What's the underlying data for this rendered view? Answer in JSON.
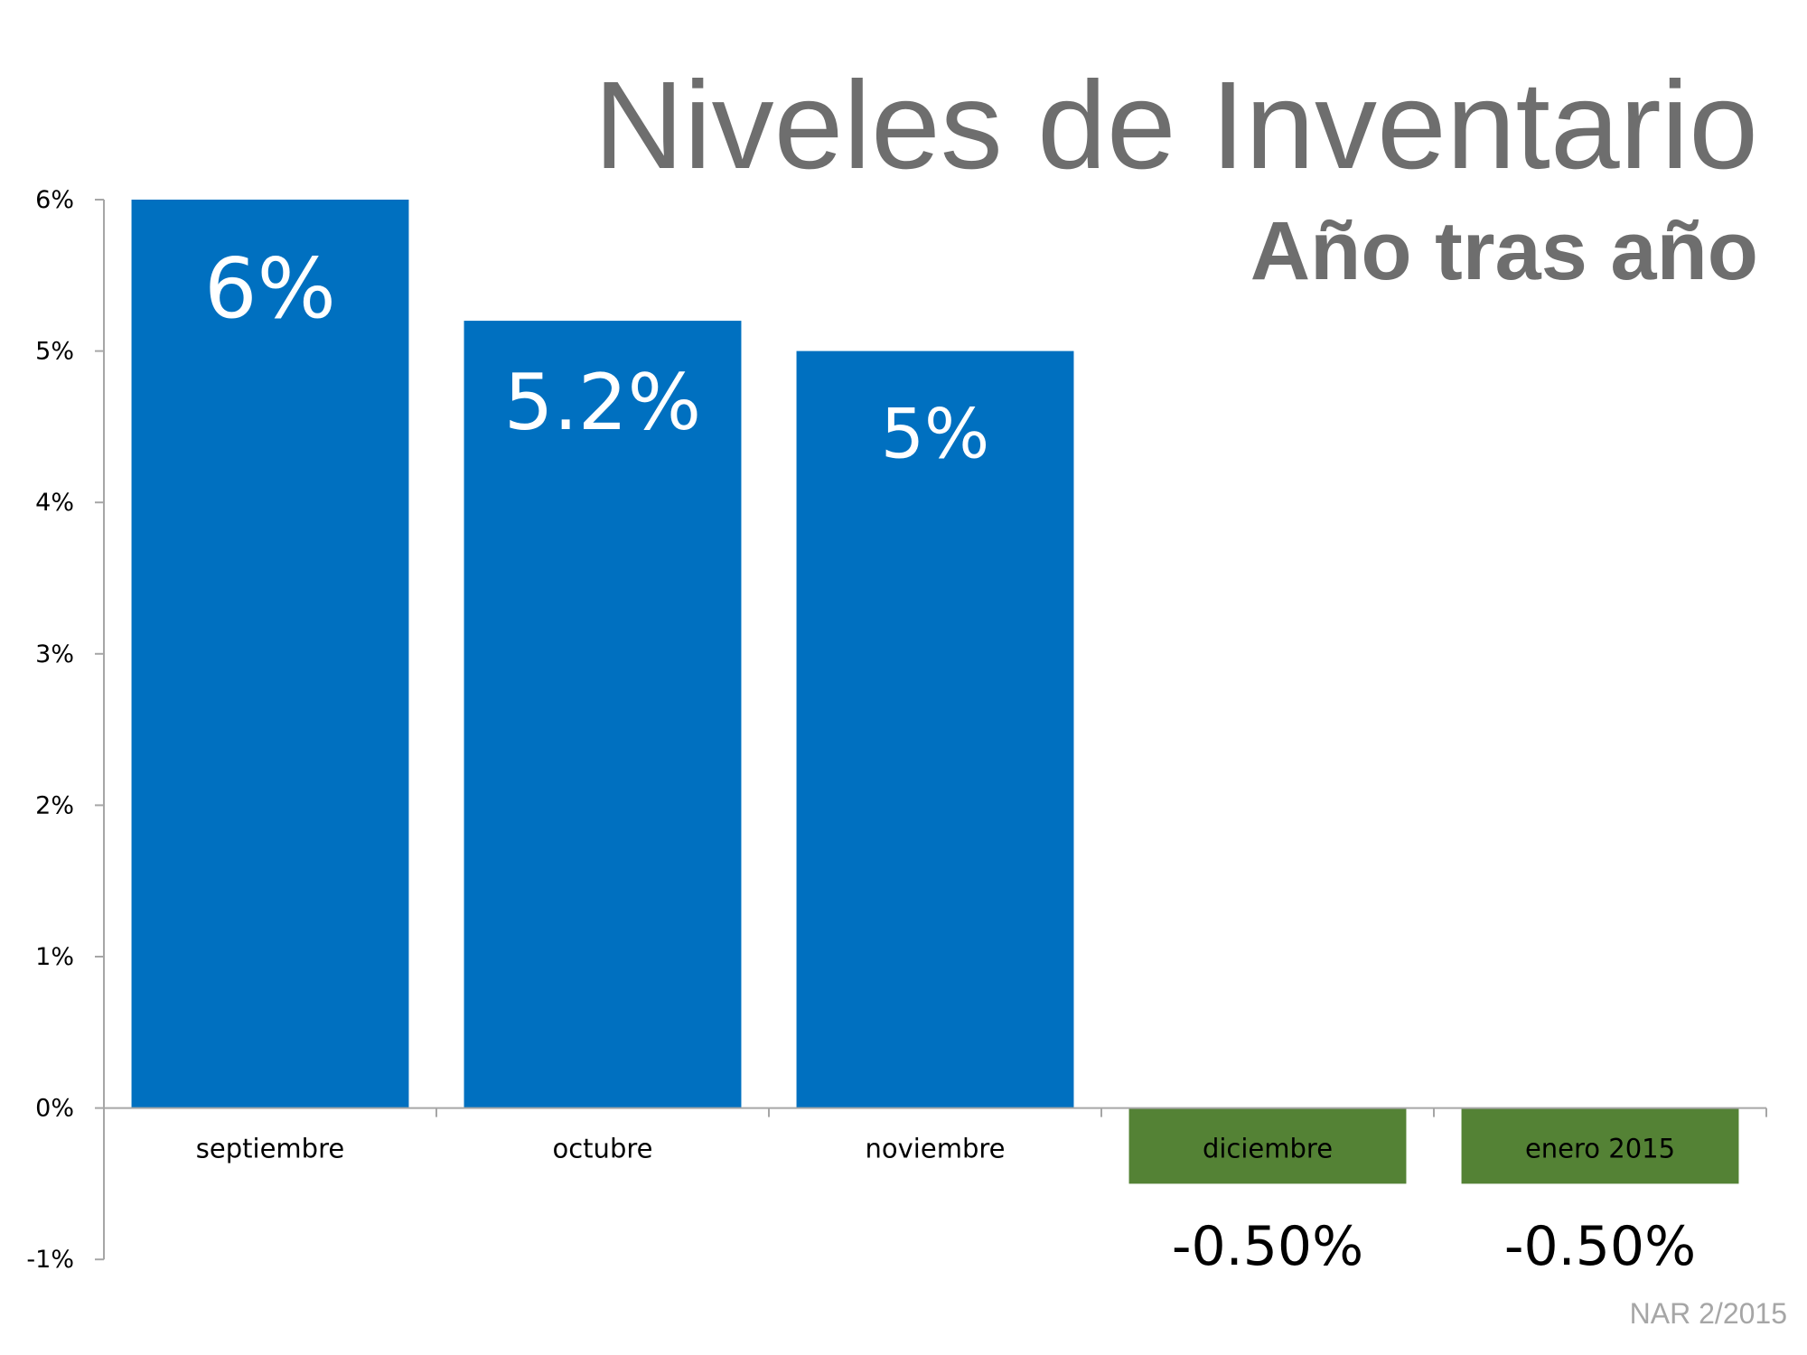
{
  "title": "Niveles de Inventario",
  "subtitle": "Año tras año",
  "source": "NAR 2/2015",
  "colors": {
    "positive_bar": "#0070c0",
    "negative_bar": "#548235",
    "axis": "#a6a6a6",
    "title_text": "#6e6e6e"
  },
  "chart_data": {
    "type": "bar",
    "categories": [
      "septiembre",
      "octubre",
      "noviembre",
      "diciembre",
      "enero 2015"
    ],
    "values": [
      6,
      5.2,
      5,
      -0.5,
      -0.5
    ],
    "data_labels": [
      "6%",
      "5.2%",
      "5%",
      "-0.50%",
      "-0.50%"
    ],
    "ylim": [
      -1,
      6
    ],
    "yticks": [
      6,
      5,
      4,
      3,
      2,
      1,
      0,
      -1
    ],
    "ytick_labels": [
      "6%",
      "5%",
      "4%",
      "3%",
      "2%",
      "1%",
      "0%",
      "-1%"
    ],
    "xlabel": "",
    "ylabel": "",
    "grid": false,
    "legend": "none"
  }
}
